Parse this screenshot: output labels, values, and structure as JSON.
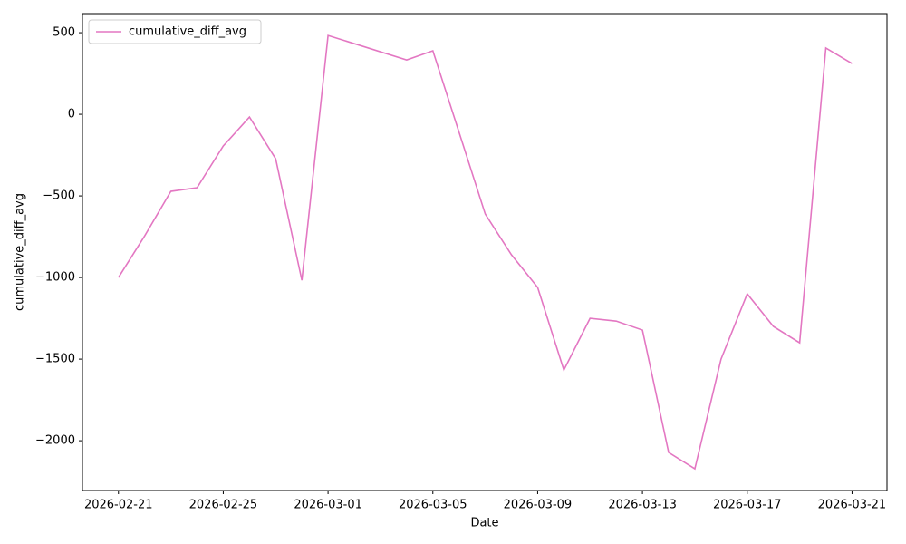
{
  "chart_data": {
    "type": "line",
    "xlabel": "Date",
    "ylabel": "cumulative_diff_avg",
    "x": [
      "2026-02-21",
      "2026-02-22",
      "2026-02-23",
      "2026-02-24",
      "2026-02-25",
      "2026-02-26",
      "2026-02-27",
      "2026-02-28",
      "2026-03-01",
      "2026-03-04",
      "2026-03-05",
      "2026-03-06",
      "2026-03-07",
      "2026-03-08",
      "2026-03-09",
      "2026-03-10",
      "2026-03-11",
      "2026-03-12",
      "2026-03-13",
      "2026-03-14",
      "2026-03-15",
      "2026-03-16",
      "2026-03-17",
      "2026-03-18",
      "2026-03-19",
      "2026-03-20",
      "2026-03-21"
    ],
    "series": [
      {
        "name": "cumulative_diff_avg",
        "color": "#e377c2",
        "values": [
          -1000,
          -745,
          -472,
          -450,
          -194,
          -17,
          -272,
          -1017,
          483,
          333,
          389,
          -110,
          -611,
          -861,
          -1061,
          -1567,
          -1250,
          -1267,
          -1322,
          -2072,
          -2172,
          -1500,
          -1100,
          -1300,
          -1400,
          406,
          311
        ]
      }
    ],
    "xlim": [
      "2026-02-19T15:00Z",
      "2026-03-22T08:00Z"
    ],
    "xticks": [
      "2026-02-21",
      "2026-02-25",
      "2026-03-01",
      "2026-03-05",
      "2026-03-09",
      "2026-03-13",
      "2026-03-17",
      "2026-03-21"
    ],
    "ylim": [
      -2305,
      617
    ],
    "yticks": [
      {
        "value": -2000,
        "label": "−2000"
      },
      {
        "value": -1500,
        "label": "−1500"
      },
      {
        "value": -1000,
        "label": "−1000"
      },
      {
        "value": -500,
        "label": "−500"
      },
      0,
      500
    ],
    "legend": "upper left",
    "grid": false
  }
}
